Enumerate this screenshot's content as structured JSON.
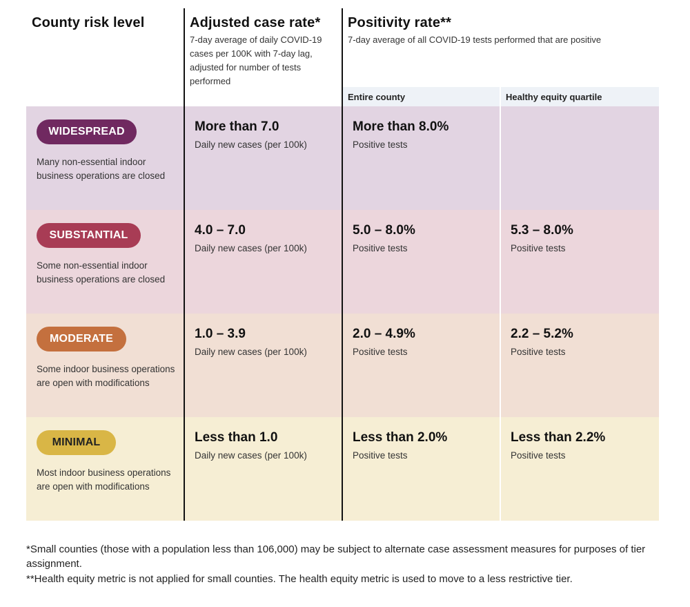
{
  "header": {
    "col1_title": "County risk level",
    "col2_title": "Adjusted case rate*",
    "col2_desc": "7-day average of daily COVID-19 cases per 100K with 7-day lag, adjusted for number of tests performed",
    "col3_title": "Positivity rate**",
    "col3_desc": "7-day average of all COVID-19 tests performed that are positive",
    "sub_entire": "Entire county",
    "sub_equity": "Healthy equity quartile"
  },
  "tiers": [
    {
      "label": "WIDESPREAD",
      "desc": "Many non-essential indoor business operations are closed",
      "case_value": "More than 7.0",
      "case_sub": "Daily new cases (per 100k)",
      "pos_value": "More than 8.0%",
      "pos_sub": "Positive tests",
      "eq_value": "",
      "eq_sub": ""
    },
    {
      "label": "SUBSTANTIAL",
      "desc": "Some non-essential indoor business operations are closed",
      "case_value": "4.0 – 7.0",
      "case_sub": "Daily new cases (per 100k)",
      "pos_value": "5.0 – 8.0%",
      "pos_sub": "Positive tests",
      "eq_value": "5.3 – 8.0%",
      "eq_sub": "Positive tests"
    },
    {
      "label": "MODERATE",
      "desc": "Some indoor business operations are open with modifications",
      "case_value": "1.0 – 3.9",
      "case_sub": "Daily new cases (per 100k)",
      "pos_value": "2.0 – 4.9%",
      "pos_sub": "Positive tests",
      "eq_value": "2.2 – 5.2%",
      "eq_sub": "Positive tests"
    },
    {
      "label": "MINIMAL",
      "desc": "Most indoor business operations are open with modifications",
      "case_value": "Less than 1.0",
      "case_sub": "Daily new cases (per 100k)",
      "pos_value": "Less than 2.0%",
      "pos_sub": "Positive tests",
      "eq_value": "Less than 2.2%",
      "eq_sub": "Positive tests"
    }
  ],
  "colors": {
    "widespread_bg": "#e2d4e2",
    "substantial_bg": "#ecd6dc",
    "moderate_bg": "#f1dfd4",
    "minimal_bg": "#f6eed4",
    "widespread_pill": "#702960",
    "substantial_pill": "#a83c55",
    "moderate_pill": "#c4703e",
    "minimal_pill": "#d9b646",
    "subheader_bg": "#eef2f7"
  },
  "footnotes": {
    "note1": "*Small counties (those with a population less than 106,000) may be subject to alternate case assessment measures for purposes of tier assignment.",
    "note2": "**Health equity metric is not applied for small counties. The health equity metric is used to move to a less restrictive tier."
  }
}
